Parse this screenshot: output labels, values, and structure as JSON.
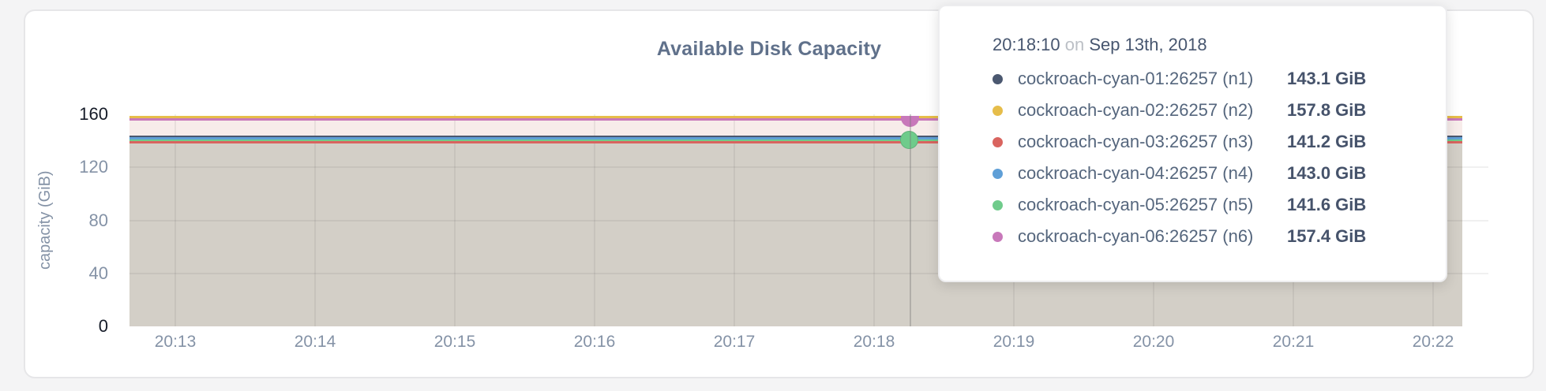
{
  "card": {
    "title": "Available Disk Capacity"
  },
  "axes": {
    "ylabel": "capacity (GiB)",
    "y_ticks": [
      {
        "label": "0",
        "value": 0,
        "emphasis": true
      },
      {
        "label": "40",
        "value": 40,
        "emphasis": false
      },
      {
        "label": "80",
        "value": 80,
        "emphasis": false
      },
      {
        "label": "120",
        "value": 120,
        "emphasis": false
      },
      {
        "label": "160",
        "value": 160,
        "emphasis": true
      }
    ],
    "x_ticks": [
      "20:13",
      "20:14",
      "20:15",
      "20:16",
      "20:17",
      "20:18",
      "20:19",
      "20:20",
      "20:21",
      "20:22"
    ]
  },
  "chart_data": {
    "type": "area",
    "title": "Available Disk Capacity",
    "ylabel": "capacity (GiB)",
    "ylim": [
      0,
      160
    ],
    "grid": true,
    "x_tick_labels": [
      "20:13",
      "20:14",
      "20:15",
      "20:16",
      "20:17",
      "20:18",
      "20:19",
      "20:20",
      "20:21",
      "20:22"
    ],
    "series_shape": "flat-constant-lines",
    "series": [
      {
        "name": "cockroach-cyan-01:26257 (n1)",
        "node": "n1",
        "color": "#4b5870",
        "value_gib": 143.1
      },
      {
        "name": "cockroach-cyan-02:26257 (n2)",
        "node": "n2",
        "color": "#e6bd4a",
        "value_gib": 157.8
      },
      {
        "name": "cockroach-cyan-03:26257 (n3)",
        "node": "n3",
        "color": "#d9645f",
        "value_gib": 141.2
      },
      {
        "name": "cockroach-cyan-04:26257 (n4)",
        "node": "n4",
        "color": "#5f9fd7",
        "value_gib": 143.0
      },
      {
        "name": "cockroach-cyan-05:26257 (n5)",
        "node": "n5",
        "color": "#6fcb8b",
        "value_gib": 141.6
      },
      {
        "name": "cockroach-cyan-06:26257 (n6)",
        "node": "n6",
        "color": "#c878ba",
        "value_gib": 157.4
      }
    ],
    "hover": {
      "time": "20:18:10",
      "markers": [
        {
          "node": "n6",
          "shape": "semicircle-below-line"
        },
        {
          "node": "n5",
          "shape": "circle-on-line"
        }
      ]
    }
  },
  "tooltip": {
    "time": "20:18:10",
    "conjunction": "on",
    "date": "Sep 13th, 2018",
    "rows": [
      {
        "name": "cockroach-cyan-01:26257 (n1)",
        "value": "143.1 GiB",
        "color": "#4b5870"
      },
      {
        "name": "cockroach-cyan-02:26257 (n2)",
        "value": "157.8 GiB",
        "color": "#e6bd4a"
      },
      {
        "name": "cockroach-cyan-03:26257 (n3)",
        "value": "141.2 GiB",
        "color": "#d9645f"
      },
      {
        "name": "cockroach-cyan-04:26257 (n4)",
        "value": "143.0 GiB",
        "color": "#5f9fd7"
      },
      {
        "name": "cockroach-cyan-05:26257 (n5)",
        "value": "141.6 GiB",
        "color": "#6fcb8b"
      },
      {
        "name": "cockroach-cyan-06:26257 (n6)",
        "value": "157.4 GiB",
        "color": "#c878ba"
      }
    ]
  }
}
